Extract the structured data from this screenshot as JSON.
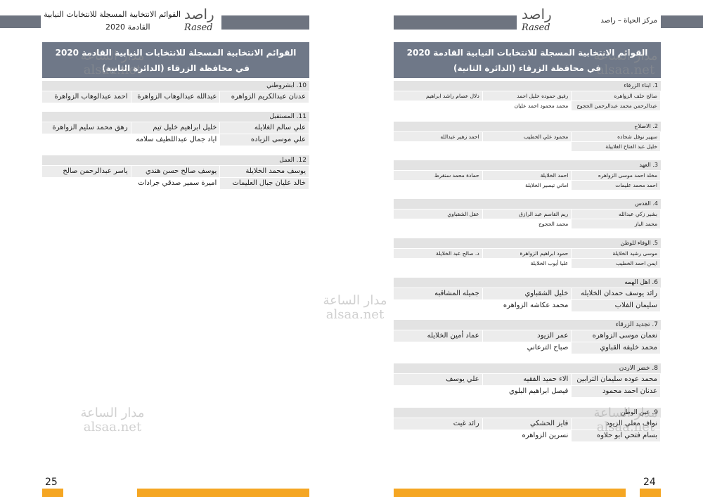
{
  "logo": {
    "arabic": "راصد",
    "latin": "Rased"
  },
  "title": {
    "line1": "القوائم الانتخابية المسجلة للانتخابات النيابية القادمة 2020",
    "line2": "في محافظة الزرقاء (الدائرة الثانية)"
  },
  "watermark": {
    "name": "مدار الساعة",
    "url": "alsaa.net"
  },
  "pages": [
    {
      "page_number": "25",
      "header_text": "القوائم الانتخابية المسجلة للانتخابات النيابية",
      "header_subtext": "القادمة 2020",
      "lists": [
        {
          "label": "10. ابشروطني",
          "rows": [
            [
              "عدنان عبدالكريم الزواهره",
              "عبدالله عبدالوهاب الزواهرة",
              "احمد عبدالوهاب الزواهرة"
            ]
          ]
        },
        {
          "label": "11. المستقبل",
          "rows": [
            [
              "علي سالم الغلايله",
              "خليل ابراهيم خليل تيم",
              "رهق محمد سليم الزواهرة"
            ],
            [
              "علي موسى الزباده",
              "اياد جمال عبداللطيف سلامه"
            ]
          ]
        },
        {
          "label": "12. العمل",
          "rows": [
            [
              "يوسف محمد الخلايلة",
              "يوسف صالح حسن هندي",
              "ياسر عبدالرحمن صالح"
            ],
            [
              "خالد عليان جبال العليمات",
              "اميرة سمير صدقي جرادات"
            ]
          ]
        }
      ]
    },
    {
      "page_number": "24",
      "header_text": "مركز الحياة – راصد",
      "lists": [
        {
          "label": "1. ابناء الزرقاء",
          "rows": [
            [
              "صالح خلف الزواهره",
              "رفيق حموده خليل احمد",
              "دلال عصام راشد ابراهيم"
            ],
            [
              "عبدالرحمن محمد عبدالرحمن الحجوج",
              "محمد محمود احمد عليان"
            ]
          ]
        },
        {
          "label": "2. الاصلاح",
          "rows": [
            [
              "سهير نوفل شحاده",
              "محمود علي الخطيب",
              "احمد زهير عبدالله"
            ],
            [
              "خليل عبد الفتاح الغلاييلة"
            ]
          ]
        },
        {
          "label": "3. العهد",
          "rows": [
            [
              "مخلد احمد موسى الزواهره",
              "احمد الخلايلة",
              "حمادة محمد سنقرط"
            ],
            [
              "احمد محمد عليمات",
              "اماني تيسير الخلايلة"
            ]
          ]
        },
        {
          "label": "4. القدس",
          "rows": [
            [
              "بشير زكي عبدالله",
              "ريم القاسم عبد الرازق",
              "عقل الشقباوي"
            ],
            [
              "محمد الباز",
              "محمد الحجوج"
            ]
          ]
        },
        {
          "label": "5. الوفاء للوطن",
          "rows": [
            [
              "موسى رشيد الخلايلة",
              "حمود ابراهيم الزواهرة",
              "د. صالح عبد الخلايلة"
            ],
            [
              "ايمن احمد الخطيب",
              "عليا أيوب الخلايلة"
            ]
          ]
        },
        {
          "label": "6. اهل الهمه",
          "rows": [
            [
              "رائد يوسف حمدان الخلايله",
              "خليل الشقباوي",
              "جميله المشاقبه"
            ],
            [
              "سليمان الفلاب",
              "محمد عكاشه الزواهره"
            ]
          ]
        },
        {
          "label": "7. تجديد الزرقاء",
          "rows": [
            [
              "نعمان موسى الزواهره",
              "عمر الزيود",
              "عماد أمين الخلايله"
            ],
            [
              "محمد خليفه القباوي",
              "صباح الترعاني"
            ]
          ]
        },
        {
          "label": "8. خضر الاردن",
          "rows": [
            [
              "محمد عوده سليمان الترابين",
              "الاء حميد الفقيه",
              "علي يوسف"
            ],
            [
              "عدنان احمد محمود",
              "فيصل ابراهيم البلوي"
            ]
          ]
        },
        {
          "label": "9. عين الوطن",
          "rows": [
            [
              "نواف معلي الزيود",
              "فايز الحشكي",
              "رائد غيث"
            ],
            [
              "بسام فتحي ابو حلاوه",
              "نسرين الزواهره"
            ]
          ]
        }
      ]
    }
  ]
}
